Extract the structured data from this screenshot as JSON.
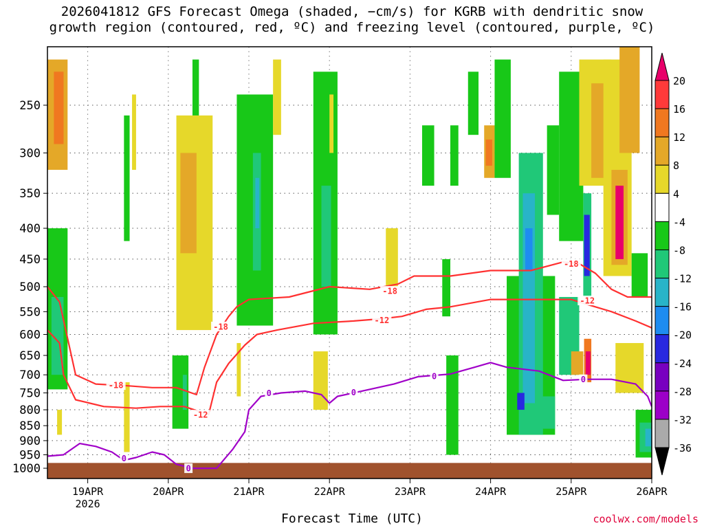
{
  "title_line1": "2026041812 GFS Forecast Omega (shaded, −cm/s) for KGRB with dendritic snow",
  "title_line2": "growth region (contoured, red, ºC) and freezing level (contoured, purple, ºC)",
  "credit": "coolwx.com/models",
  "chart_data": {
    "type": "heatmap",
    "title": "2026041812 GFS Forecast Omega (shaded, −cm/s) for KGRB with dendritic snow growth region (contoured, red, ºC) and freezing level (contoured, purple, ºC)",
    "xlabel": "Forecast Time (UTC)",
    "ylabel": "",
    "x_ticks": [
      {
        "day": 19,
        "label": "19APR",
        "sublabel": "2026"
      },
      {
        "day": 20,
        "label": "20APR"
      },
      {
        "day": 21,
        "label": "21APR"
      },
      {
        "day": 22,
        "label": "22APR"
      },
      {
        "day": 23,
        "label": "23APR"
      },
      {
        "day": 24,
        "label": "24APR"
      },
      {
        "day": 25,
        "label": "25APR"
      },
      {
        "day": 26,
        "label": "26APR"
      }
    ],
    "x_range_days": [
      18.5,
      26.0
    ],
    "y_scale": "log-pressure",
    "y_range_hpa": [
      1040,
      200
    ],
    "y_ticks": [
      250,
      300,
      350,
      400,
      450,
      500,
      550,
      600,
      650,
      700,
      750,
      800,
      850,
      900,
      950,
      1000
    ],
    "grid": true,
    "colorbar": {
      "levels": [
        20,
        16,
        12,
        8,
        4,
        -4,
        -8,
        -12,
        -16,
        -20,
        -24,
        -28,
        -32,
        -36
      ],
      "colors": {
        "gt20": "#e8006a",
        "16_20": "#ff3a3a",
        "12_16": "#f07820",
        "8_12": "#e4a828",
        "4_8": "#e6d82a",
        "-4_4": "#ffffff",
        "-8_-4": "#18c818",
        "-12_-8": "#20c878",
        "-16_-12": "#28b4c8",
        "-20_-16": "#1e8cf0",
        "-24_-20": "#2828e0",
        "-28_-24": "#7800c0",
        "-32_-28": "#9c00c8",
        "-36_-32": "#aaaaaa",
        "lt-36": "#000000"
      }
    },
    "omega_cells": [
      {
        "x0": 18.5,
        "x1": 18.75,
        "p0": 210,
        "p1": 320,
        "v": 9
      },
      {
        "x0": 18.58,
        "x1": 18.7,
        "p0": 220,
        "p1": 290,
        "v": 13
      },
      {
        "x0": 18.5,
        "x1": 18.75,
        "p0": 400,
        "p1": 740,
        "v": -6
      },
      {
        "x0": 18.55,
        "x1": 18.7,
        "p0": 520,
        "p1": 700,
        "v": -10
      },
      {
        "x0": 18.62,
        "x1": 18.68,
        "p0": 800,
        "p1": 880,
        "v": 6
      },
      {
        "x0": 19.45,
        "x1": 19.52,
        "p0": 720,
        "p1": 940,
        "v": 6
      },
      {
        "x0": 19.45,
        "x1": 19.52,
        "p0": 260,
        "p1": 420,
        "v": -6
      },
      {
        "x0": 19.55,
        "x1": 19.6,
        "p0": 240,
        "p1": 320,
        "v": 5
      },
      {
        "x0": 20.1,
        "x1": 20.55,
        "p0": 260,
        "p1": 590,
        "v": 6
      },
      {
        "x0": 20.15,
        "x1": 20.35,
        "p0": 300,
        "p1": 440,
        "v": 9
      },
      {
        "x0": 20.2,
        "x1": 20.28,
        "p0": 320,
        "p1": 380,
        "v": 12
      },
      {
        "x0": 20.05,
        "x1": 20.25,
        "p0": 650,
        "p1": 860,
        "v": -6
      },
      {
        "x0": 20.18,
        "x1": 20.23,
        "p0": 700,
        "p1": 800,
        "v": -10
      },
      {
        "x0": 20.3,
        "x1": 20.38,
        "p0": 210,
        "p1": 260,
        "v": -6
      },
      {
        "x0": 20.85,
        "x1": 21.3,
        "p0": 240,
        "p1": 580,
        "v": -6
      },
      {
        "x0": 21.05,
        "x1": 21.15,
        "p0": 300,
        "p1": 470,
        "v": -10
      },
      {
        "x0": 21.08,
        "x1": 21.13,
        "p0": 330,
        "p1": 400,
        "v": -13
      },
      {
        "x0": 21.3,
        "x1": 21.4,
        "p0": 210,
        "p1": 280,
        "v": 5
      },
      {
        "x0": 20.85,
        "x1": 20.9,
        "p0": 620,
        "p1": 760,
        "v": 5
      },
      {
        "x0": 21.8,
        "x1": 22.1,
        "p0": 220,
        "p1": 600,
        "v": -6
      },
      {
        "x0": 21.9,
        "x1": 22.02,
        "p0": 340,
        "p1": 500,
        "v": -10
      },
      {
        "x0": 21.8,
        "x1": 21.98,
        "p0": 640,
        "p1": 800,
        "v": 5
      },
      {
        "x0": 22.0,
        "x1": 22.05,
        "p0": 240,
        "p1": 300,
        "v": 5
      },
      {
        "x0": 22.7,
        "x1": 22.85,
        "p0": 400,
        "p1": 500,
        "v": 5
      },
      {
        "x0": 23.15,
        "x1": 23.3,
        "p0": 270,
        "p1": 340,
        "v": -6
      },
      {
        "x0": 23.5,
        "x1": 23.6,
        "p0": 270,
        "p1": 340,
        "v": -6
      },
      {
        "x0": 23.4,
        "x1": 23.5,
        "p0": 450,
        "p1": 560,
        "v": -6
      },
      {
        "x0": 23.45,
        "x1": 23.6,
        "p0": 650,
        "p1": 950,
        "v": -6
      },
      {
        "x0": 23.72,
        "x1": 23.85,
        "p0": 220,
        "p1": 280,
        "v": -6
      },
      {
        "x0": 23.92,
        "x1": 24.05,
        "p0": 270,
        "p1": 330,
        "v": 9
      },
      {
        "x0": 23.94,
        "x1": 24.02,
        "p0": 285,
        "p1": 315,
        "v": 13
      },
      {
        "x0": 24.05,
        "x1": 24.25,
        "p0": 210,
        "p1": 330,
        "v": -6
      },
      {
        "x0": 24.2,
        "x1": 24.8,
        "p0": 480,
        "p1": 880,
        "v": -6
      },
      {
        "x0": 24.35,
        "x1": 24.65,
        "p0": 300,
        "p1": 880,
        "v": -10
      },
      {
        "x0": 24.4,
        "x1": 24.55,
        "p0": 350,
        "p1": 780,
        "v": -14
      },
      {
        "x0": 24.43,
        "x1": 24.52,
        "p0": 400,
        "p1": 470,
        "v": -18
      },
      {
        "x0": 24.33,
        "x1": 24.42,
        "p0": 750,
        "p1": 800,
        "v": -22
      },
      {
        "x0": 24.7,
        "x1": 24.85,
        "p0": 270,
        "p1": 380,
        "v": -6
      },
      {
        "x0": 24.6,
        "x1": 24.8,
        "p0": 760,
        "p1": 860,
        "v": -10
      },
      {
        "x0": 24.85,
        "x1": 25.15,
        "p0": 220,
        "p1": 420,
        "v": -6
      },
      {
        "x0": 24.85,
        "x1": 25.1,
        "p0": 520,
        "p1": 700,
        "v": -10
      },
      {
        "x0": 25.1,
        "x1": 25.5,
        "p0": 210,
        "p1": 340,
        "v": 6
      },
      {
        "x0": 25.25,
        "x1": 25.45,
        "p0": 230,
        "p1": 330,
        "v": 10
      },
      {
        "x0": 25.15,
        "x1": 25.25,
        "p0": 350,
        "p1": 520,
        "v": -12
      },
      {
        "x0": 25.16,
        "x1": 25.23,
        "p0": 380,
        "p1": 480,
        "v": -22
      },
      {
        "x0": 25.0,
        "x1": 25.15,
        "p0": 640,
        "p1": 700,
        "v": 9
      },
      {
        "x0": 25.16,
        "x1": 25.25,
        "p0": 610,
        "p1": 720,
        "v": 14
      },
      {
        "x0": 25.18,
        "x1": 25.24,
        "p0": 640,
        "p1": 700,
        "v": 22
      },
      {
        "x0": 25.4,
        "x1": 25.75,
        "p0": 210,
        "p1": 480,
        "v": 5
      },
      {
        "x0": 25.5,
        "x1": 25.7,
        "p0": 320,
        "p1": 460,
        "v": 10
      },
      {
        "x0": 25.55,
        "x1": 25.65,
        "p0": 340,
        "p1": 450,
        "v": 22
      },
      {
        "x0": 25.6,
        "x1": 25.85,
        "p0": 200,
        "p1": 300,
        "v": 9
      },
      {
        "x0": 25.75,
        "x1": 25.95,
        "p0": 440,
        "p1": 520,
        "v": -6
      },
      {
        "x0": 25.55,
        "x1": 25.9,
        "p0": 620,
        "p1": 750,
        "v": 5
      },
      {
        "x0": 25.8,
        "x1": 26.0,
        "p0": 800,
        "p1": 960,
        "v": -6
      },
      {
        "x0": 25.85,
        "x1": 26.0,
        "p0": 840,
        "p1": 940,
        "v": -10
      },
      {
        "x0": 25.92,
        "x1": 26.0,
        "p0": 860,
        "p1": 920,
        "v": -14
      }
    ],
    "contours": [
      {
        "series": "dendritic_snow_growth",
        "value": -18,
        "label": "-18",
        "color": "#ff3030",
        "points": [
          [
            18.5,
            500
          ],
          [
            18.65,
            530
          ],
          [
            18.85,
            700
          ],
          [
            19.1,
            725
          ],
          [
            19.5,
            730
          ],
          [
            19.8,
            735
          ],
          [
            20.1,
            735
          ],
          [
            20.35,
            755
          ],
          [
            20.45,
            680
          ],
          [
            20.6,
            600
          ],
          [
            20.75,
            560
          ],
          [
            20.85,
            540
          ],
          [
            21.0,
            525
          ],
          [
            21.5,
            520
          ],
          [
            22.0,
            500
          ],
          [
            22.5,
            505
          ],
          [
            22.85,
            495
          ],
          [
            23.05,
            480
          ],
          [
            23.5,
            480
          ],
          [
            24.0,
            470
          ],
          [
            24.5,
            470
          ],
          [
            24.9,
            455
          ],
          [
            25.1,
            458
          ],
          [
            25.3,
            475
          ],
          [
            25.5,
            505
          ],
          [
            25.7,
            520
          ],
          [
            26.0,
            520
          ]
        ],
        "label_positions": [
          [
            19.35,
            728
          ],
          [
            20.65,
            582
          ],
          [
            22.75,
            508
          ],
          [
            25.0,
            458
          ]
        ]
      },
      {
        "series": "dendritic_snow_growth",
        "value": -12,
        "label": "-12",
        "color": "#ff3030",
        "points": [
          [
            18.5,
            590
          ],
          [
            18.65,
            620
          ],
          [
            18.7,
            700
          ],
          [
            18.85,
            770
          ],
          [
            19.2,
            790
          ],
          [
            19.6,
            795
          ],
          [
            19.9,
            790
          ],
          [
            20.2,
            790
          ],
          [
            20.5,
            815
          ],
          [
            20.6,
            720
          ],
          [
            20.75,
            670
          ],
          [
            20.95,
            625
          ],
          [
            21.1,
            600
          ],
          [
            21.35,
            590
          ],
          [
            21.8,
            575
          ],
          [
            22.3,
            570
          ],
          [
            22.65,
            565
          ],
          [
            22.9,
            560
          ],
          [
            23.2,
            545
          ],
          [
            23.5,
            540
          ],
          [
            24.0,
            525
          ],
          [
            24.5,
            525
          ],
          [
            25.0,
            525
          ],
          [
            25.2,
            535
          ],
          [
            25.5,
            550
          ],
          [
            25.8,
            570
          ],
          [
            26.0,
            585
          ]
        ],
        "label_positions": [
          [
            20.4,
            815
          ],
          [
            22.65,
            568
          ],
          [
            25.2,
            527
          ]
        ]
      },
      {
        "series": "freezing_level",
        "value": 0,
        "label": "0",
        "color": "#a000c8",
        "points": [
          [
            18.5,
            955
          ],
          [
            18.7,
            950
          ],
          [
            18.9,
            910
          ],
          [
            19.1,
            920
          ],
          [
            19.3,
            940
          ],
          [
            19.45,
            970
          ],
          [
            19.6,
            960
          ],
          [
            19.8,
            940
          ],
          [
            19.95,
            950
          ],
          [
            20.1,
            985
          ],
          [
            20.3,
            1000
          ],
          [
            20.6,
            1000
          ],
          [
            20.8,
            930
          ],
          [
            20.95,
            870
          ],
          [
            21.0,
            800
          ],
          [
            21.15,
            760
          ],
          [
            21.4,
            750
          ],
          [
            21.7,
            745
          ],
          [
            21.9,
            755
          ],
          [
            22.0,
            780
          ],
          [
            22.1,
            760
          ],
          [
            22.4,
            745
          ],
          [
            22.8,
            725
          ],
          [
            23.1,
            705
          ],
          [
            23.5,
            698
          ],
          [
            23.8,
            680
          ],
          [
            24.0,
            668
          ],
          [
            24.2,
            680
          ],
          [
            24.6,
            690
          ],
          [
            24.9,
            715
          ],
          [
            25.2,
            712
          ],
          [
            25.5,
            712
          ],
          [
            25.8,
            725
          ],
          [
            25.95,
            760
          ],
          [
            26.0,
            790
          ]
        ],
        "label_positions": [
          [
            19.45,
            962
          ],
          [
            20.25,
            1000
          ],
          [
            21.25,
            750
          ],
          [
            22.3,
            748
          ],
          [
            23.3,
            703
          ],
          [
            25.15,
            712
          ]
        ]
      }
    ],
    "ground": {
      "p_top": 980,
      "p_bottom": 1040,
      "color": "#a0522d"
    }
  }
}
